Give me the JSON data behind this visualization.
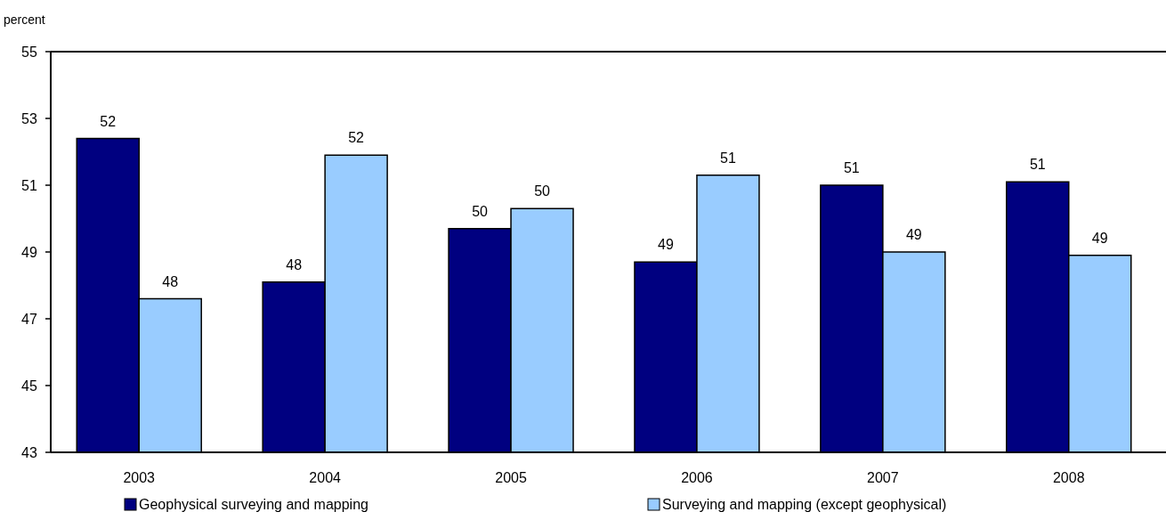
{
  "chart_data": {
    "type": "bar",
    "ylabel": "percent",
    "categories": [
      "2003",
      "2004",
      "2005",
      "2006",
      "2007",
      "2008"
    ],
    "series": [
      {
        "name": "Geophysical surveying and mapping",
        "color": "#000080",
        "values": [
          52.4,
          48.1,
          49.7,
          48.7,
          51.0,
          51.1
        ],
        "value_labels": [
          "52",
          "48",
          "50",
          "49",
          "51",
          "51"
        ]
      },
      {
        "name": "Surveying and mapping (except geophysical)",
        "color": "#99ccff",
        "values": [
          47.6,
          51.9,
          50.3,
          51.3,
          49.0,
          48.9
        ],
        "value_labels": [
          "48",
          "52",
          "50",
          "51",
          "49",
          "49"
        ]
      }
    ],
    "ylim": [
      43,
      55
    ],
    "yticks": [
      43,
      45,
      47,
      49,
      51,
      53,
      55
    ],
    "grid": false,
    "legend": "bottom"
  }
}
